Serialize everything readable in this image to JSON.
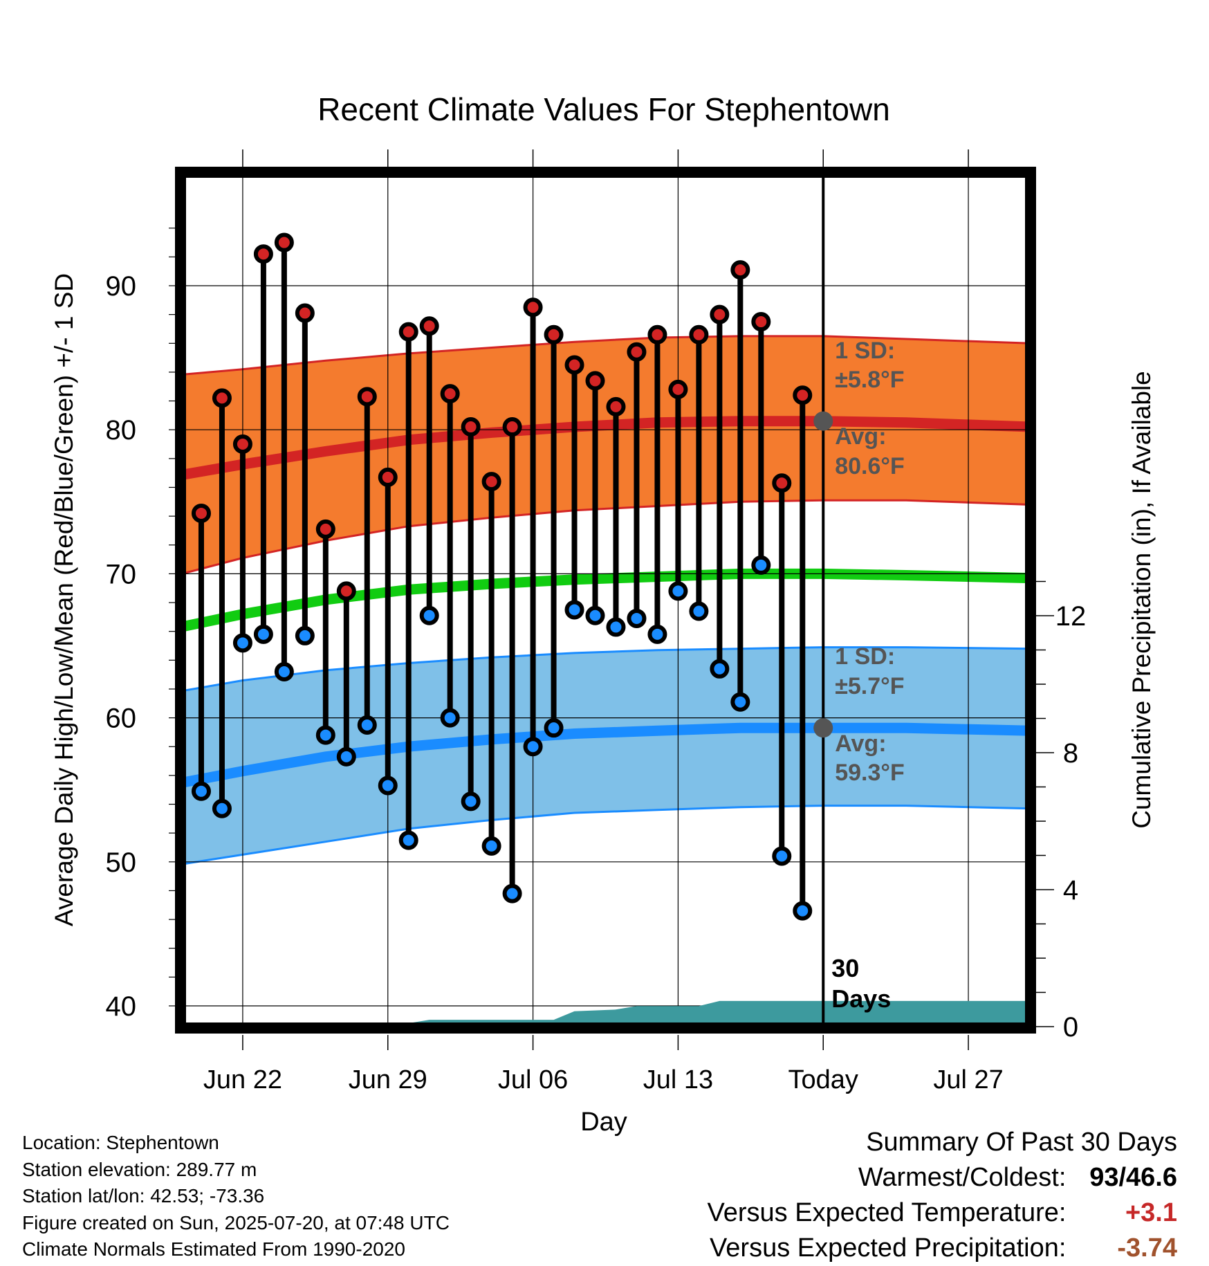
{
  "chart_data": {
    "type": "line",
    "title": "Recent Climate Values For Stephentown",
    "xlabel": "Day",
    "ylabel": "Average Daily High/Low/Mean (Red/Blue/Green) +/- 1 SD",
    "y2label": "Cumulative Precipitation (in), If Available",
    "x_range": [
      "2025-06-19",
      "2025-07-30"
    ],
    "ylim": [
      39,
      97
    ],
    "y_ticks": [
      40,
      50,
      60,
      70,
      80,
      90
    ],
    "y2lim": [
      0,
      25
    ],
    "y2_ticks": [
      0,
      4,
      8,
      12
    ],
    "x_ticks": [
      {
        "date": "2025-06-22",
        "label": "Jun 22"
      },
      {
        "date": "2025-06-29",
        "label": "Jun 29"
      },
      {
        "date": "2025-07-06",
        "label": "Jul 06"
      },
      {
        "date": "2025-07-13",
        "label": "Jul 13"
      },
      {
        "date": "2025-07-20",
        "label": "Today"
      },
      {
        "date": "2025-07-27",
        "label": "Jul 27"
      }
    ],
    "grid": true,
    "today": "2025-07-20",
    "window_label": [
      "30",
      "Days"
    ],
    "normals": {
      "dates": [
        "2025-06-18",
        "2025-06-22",
        "2025-06-26",
        "2025-06-30",
        "2025-07-04",
        "2025-07-08",
        "2025-07-12",
        "2025-07-16",
        "2025-07-20",
        "2025-07-24",
        "2025-07-30"
      ],
      "high_avg": [
        76.6,
        77.6,
        78.5,
        79.3,
        79.8,
        80.2,
        80.5,
        80.6,
        80.6,
        80.5,
        80.2
      ],
      "high_upper": [
        83.7,
        84.2,
        84.8,
        85.3,
        85.7,
        86.1,
        86.4,
        86.5,
        86.5,
        86.3,
        86.0
      ],
      "high_lower": [
        69.6,
        71.1,
        72.3,
        73.3,
        73.9,
        74.4,
        74.7,
        75.0,
        75.1,
        75.1,
        74.8
      ],
      "mean": [
        66.0,
        67.2,
        68.2,
        68.9,
        69.3,
        69.6,
        69.8,
        70.0,
        70.0,
        69.9,
        69.7
      ],
      "low_avg": [
        55.2,
        56.3,
        57.3,
        58.0,
        58.5,
        58.9,
        59.1,
        59.3,
        59.3,
        59.3,
        59.1
      ],
      "low_upper": [
        61.6,
        62.6,
        63.3,
        63.8,
        64.2,
        64.5,
        64.7,
        64.8,
        64.9,
        64.9,
        64.8
      ],
      "low_lower": [
        49.6,
        50.5,
        51.4,
        52.3,
        52.9,
        53.4,
        53.6,
        53.8,
        53.9,
        53.9,
        53.7
      ],
      "high_sd_label": [
        "1 SD:",
        "±5.8°F"
      ],
      "high_avg_label": [
        "Avg:",
        "80.6°F"
      ],
      "low_sd_label": [
        "1 SD:",
        "±5.7°F"
      ],
      "low_avg_label": [
        "Avg:",
        "59.3°F"
      ]
    },
    "daily": {
      "dates": [
        "2025-06-20",
        "2025-06-21",
        "2025-06-22",
        "2025-06-23",
        "2025-06-24",
        "2025-06-25",
        "2025-06-26",
        "2025-06-27",
        "2025-06-28",
        "2025-06-29",
        "2025-06-30",
        "2025-07-01",
        "2025-07-02",
        "2025-07-03",
        "2025-07-04",
        "2025-07-05",
        "2025-07-06",
        "2025-07-07",
        "2025-07-08",
        "2025-07-09",
        "2025-07-10",
        "2025-07-11",
        "2025-07-12",
        "2025-07-13",
        "2025-07-14",
        "2025-07-15",
        "2025-07-16",
        "2025-07-17",
        "2025-07-18",
        "2025-07-19"
      ],
      "high": [
        74.2,
        82.2,
        79.0,
        92.2,
        93.0,
        88.1,
        73.1,
        68.8,
        82.3,
        76.7,
        86.8,
        87.2,
        82.5,
        80.2,
        76.4,
        80.2,
        88.5,
        86.6,
        84.5,
        83.4,
        81.6,
        85.4,
        86.6,
        82.8,
        86.6,
        88.0,
        91.1,
        87.5,
        76.3,
        82.4
      ],
      "low": [
        54.9,
        53.7,
        65.2,
        65.8,
        63.2,
        65.7,
        58.8,
        57.3,
        59.5,
        55.3,
        51.5,
        67.1,
        60.0,
        54.2,
        51.1,
        47.8,
        58.0,
        59.3,
        67.5,
        67.1,
        66.3,
        66.9,
        65.8,
        68.8,
        67.4,
        63.4,
        61.1,
        70.6,
        50.4,
        46.6
      ]
    },
    "precip_cumulative": {
      "dates": [
        "2025-06-19",
        "2025-06-29",
        "2025-07-01",
        "2025-07-07",
        "2025-07-08",
        "2025-07-10",
        "2025-07-11",
        "2025-07-14",
        "2025-07-15",
        "2025-07-30"
      ],
      "values": [
        0.0,
        0.0,
        0.2,
        0.2,
        0.45,
        0.5,
        0.6,
        0.6,
        0.75,
        0.75
      ]
    }
  },
  "info": {
    "location": "Location: Stephentown",
    "elevation": "Station elevation: 289.77 m",
    "latlon": "Station lat/lon: 42.53; -73.36",
    "created": "Figure created on Sun, 2025-07-20, at 07:48 UTC",
    "normals_period": "Climate Normals Estimated From 1990-2020"
  },
  "summary": {
    "title": "Summary Of Past 30 Days",
    "warmest_coldest_label": "Warmest/Coldest:",
    "warmest_coldest_high": "93",
    "warmest_coldest_sep": "/",
    "warmest_coldest_low": "46.6",
    "temp_label": "Versus Expected Temperature:",
    "temp_value": "+3.1",
    "precip_label": "Versus Expected Precipitation:",
    "precip_value": "-3.74",
    "colors": {
      "temp_value": "#c62828",
      "precip_value": "#a0522d"
    }
  },
  "colors": {
    "high_band": "#f47b2e",
    "high_line": "#d32424",
    "mean_line": "#11cc11",
    "low_band": "#7fc0e8",
    "low_line": "#1a8cff",
    "precip": "#3d9a9e",
    "high_marker": "#d32424",
    "low_marker": "#1a8cff",
    "annotation": "#555555"
  }
}
